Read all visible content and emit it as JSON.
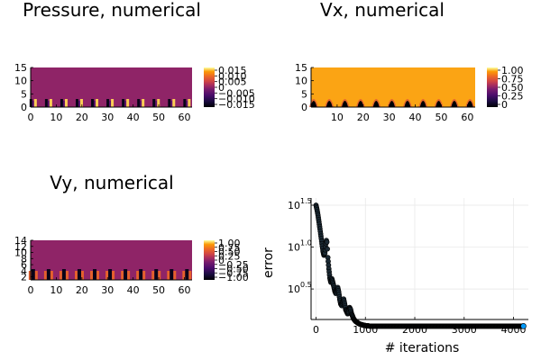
{
  "chart_data": [
    {
      "type": "heatmap",
      "title": "Pressure, numerical",
      "x_ticks": [
        "0",
        "10",
        "20",
        "30",
        "40",
        "50",
        "60"
      ],
      "y_ticks": [
        "0",
        "5",
        "10",
        "15"
      ],
      "xlim": [
        0,
        63
      ],
      "ylim": [
        0,
        15
      ],
      "colorbar_ticks": [
        "0.015",
        "0.010",
        "0.005",
        "0",
        "−0.005",
        "−0.010",
        "−0.015"
      ],
      "colorbar_range": [
        -0.015,
        0.015
      ],
      "colormap": "inferno",
      "background_value": 0.0,
      "n_features": 11,
      "feature_x": [
        1,
        7,
        13,
        19,
        25,
        31,
        37,
        43,
        49,
        55,
        61
      ]
    },
    {
      "type": "heatmap",
      "title": "Vx, numerical",
      "x_ticks": [
        "10",
        "20",
        "30",
        "40",
        "50",
        "60"
      ],
      "y_ticks": [
        "0",
        "5",
        "10",
        "15"
      ],
      "xlim": [
        0,
        63
      ],
      "ylim": [
        0,
        15
      ],
      "colorbar_ticks": [
        "1.00",
        "0.75",
        "0.50",
        "0.25",
        "0"
      ],
      "colorbar_range": [
        0,
        1.1
      ],
      "colormap": "inferno",
      "background_value": 1.0,
      "n_features": 11,
      "feature_x": [
        1,
        7,
        13,
        19,
        25,
        31,
        37,
        43,
        49,
        55,
        61
      ]
    },
    {
      "type": "heatmap",
      "title": "Vy, numerical",
      "x_ticks": [
        "0",
        "10",
        "20",
        "30",
        "40",
        "50",
        "60"
      ],
      "y_ticks": [
        "2",
        "4",
        "6",
        "8",
        "10",
        "12",
        "14"
      ],
      "xlim": [
        0,
        63
      ],
      "ylim": [
        1,
        14
      ],
      "colorbar_ticks": [
        "1.00",
        "0.75",
        "0.50",
        "0.25",
        "0",
        "−0.25",
        "−0.50",
        "−0.75",
        "−1.00"
      ],
      "colorbar_range": [
        -1,
        1
      ],
      "colormap": "inferno",
      "background_value": 0.0,
      "n_features": 11,
      "feature_x": [
        1,
        7,
        13,
        19,
        25,
        31,
        37,
        43,
        49,
        55,
        61
      ]
    },
    {
      "type": "scatter",
      "title": "",
      "xlabel": "# iterations",
      "ylabel": "error",
      "y_scale": "log10",
      "x_ticks": [
        "0",
        "1000",
        "2000",
        "3000",
        "4000"
      ],
      "y_tick_exponents": [
        "1.5",
        "1.0",
        "0.5"
      ],
      "xlim": [
        -100,
        4300
      ],
      "ylim_log10": [
        0.05,
        1.5
      ],
      "grid": true,
      "legend": "none",
      "marker_color": "#009AFA",
      "marker_edge_color": "#000000",
      "series": [
        {
          "x": [
            0,
            20,
            40,
            60,
            80,
            100,
            120,
            140,
            160,
            180,
            200,
            210,
            220,
            230,
            240,
            260,
            280,
            300,
            320,
            340,
            360,
            380,
            400,
            420,
            440,
            460,
            480,
            500,
            520,
            540,
            560,
            580,
            600,
            620,
            640,
            660,
            680,
            700,
            720,
            740,
            760,
            780,
            800,
            820,
            840,
            860,
            880,
            900,
            920,
            940,
            960,
            980,
            1000,
            1020,
            1040,
            1060,
            1080,
            1100,
            1200,
            1400,
            1600,
            1800,
            2000,
            2200,
            2400,
            2600,
            2800,
            3000,
            3200,
            3400,
            3600,
            3800,
            4000,
            4200
          ],
          "y": [
            31.6,
            28.0,
            24.0,
            20.0,
            16.5,
            13.5,
            11.0,
            9.0,
            8.0,
            8.5,
            11.0,
            12.0,
            11.5,
            9.5,
            7.5,
            5.5,
            4.3,
            3.8,
            4.2,
            3.8,
            3.4,
            3.0,
            2.8,
            3.1,
            3.3,
            2.9,
            2.4,
            2.1,
            2.0,
            2.2,
            2.4,
            2.1,
            1.8,
            1.7,
            1.6,
            1.7,
            1.9,
            1.8,
            1.6,
            1.5,
            1.4,
            1.35,
            1.3,
            1.28,
            1.25,
            1.23,
            1.21,
            1.2,
            1.19,
            1.18,
            1.17,
            1.16,
            1.16,
            1.15,
            1.15,
            1.15,
            1.14,
            1.14,
            1.14,
            1.14,
            1.14,
            1.14,
            1.14,
            1.14,
            1.14,
            1.14,
            1.14,
            1.14,
            1.14,
            1.14,
            1.14,
            1.14,
            1.14,
            1.14
          ]
        }
      ]
    }
  ]
}
